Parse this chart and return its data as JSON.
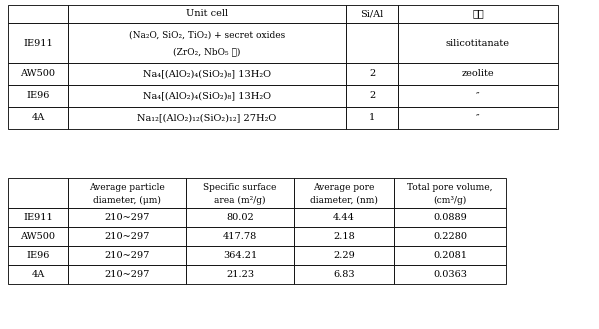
{
  "table1": {
    "col_headers": [
      "Unit cell",
      "Si/Al",
      "비고"
    ],
    "row_labels": [
      "IE911",
      "AW500",
      "IE96",
      "4A"
    ],
    "unit_cell": [
      "(Na₂O, SiO₂, TiO₂) + secret oxides\n(ZrO₂, NbO₅ 등)",
      "Na₄[(AlO₂)₄(SiO₂)₈] 13H₂O",
      "Na₄[(AlO₂)₄(SiO₂)₈] 13H₂O",
      "Na₁₂[(AlO₂)₁₂(SiO₂)₁₂] 27H₂O"
    ],
    "si_al": [
      "",
      "2",
      "2",
      "1"
    ],
    "remarks": [
      "silicotitanate",
      "zeolite",
      "″",
      "″"
    ]
  },
  "table2": {
    "col_headers": [
      "Average particle\ndiameter, (μm)",
      "Specific surface\narea (m²/g)",
      "Average pore\ndiameter, (nm)",
      "Total pore volume,\n(cm³/g)"
    ],
    "row_labels": [
      "IE911",
      "AW500",
      "IE96",
      "4A"
    ],
    "avg_particle": [
      "210~297",
      "210~297",
      "210~297",
      "210~297"
    ],
    "specific_surface": [
      "80.02",
      "417.78",
      "364.21",
      "21.23"
    ],
    "avg_pore": [
      "4.44",
      "2.18",
      "2.29",
      "6.83"
    ],
    "total_pore": [
      "0.0889",
      "0.2280",
      "0.2081",
      "0.0363"
    ]
  },
  "bg_color": "#ffffff",
  "border_color": "#000000",
  "font_size": 7.0,
  "header_font_size": 7.0
}
